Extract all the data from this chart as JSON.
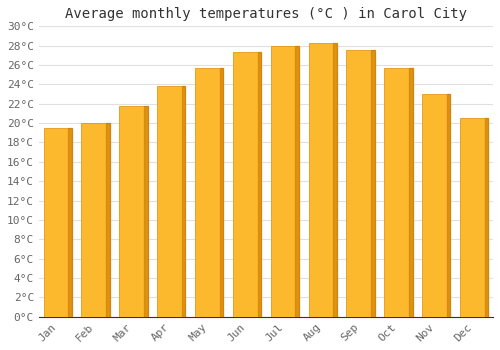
{
  "title": "Average monthly temperatures (°C ) in Carol City",
  "months": [
    "Jan",
    "Feb",
    "Mar",
    "Apr",
    "May",
    "Jun",
    "Jul",
    "Aug",
    "Sep",
    "Oct",
    "Nov",
    "Dec"
  ],
  "temperatures": [
    19.5,
    20.0,
    21.8,
    23.8,
    25.7,
    27.3,
    28.0,
    28.3,
    27.6,
    25.7,
    23.0,
    20.5
  ],
  "bar_color_main": "#FDB92E",
  "bar_color_edge": "#E08A00",
  "bar_color_shadow": "#CC7A00",
  "ylim": [
    0,
    30
  ],
  "ytick_step": 2,
  "background_color": "#FFFFFF",
  "grid_color": "#E0E0E0",
  "title_fontsize": 10,
  "tick_fontsize": 8,
  "font_family": "monospace"
}
